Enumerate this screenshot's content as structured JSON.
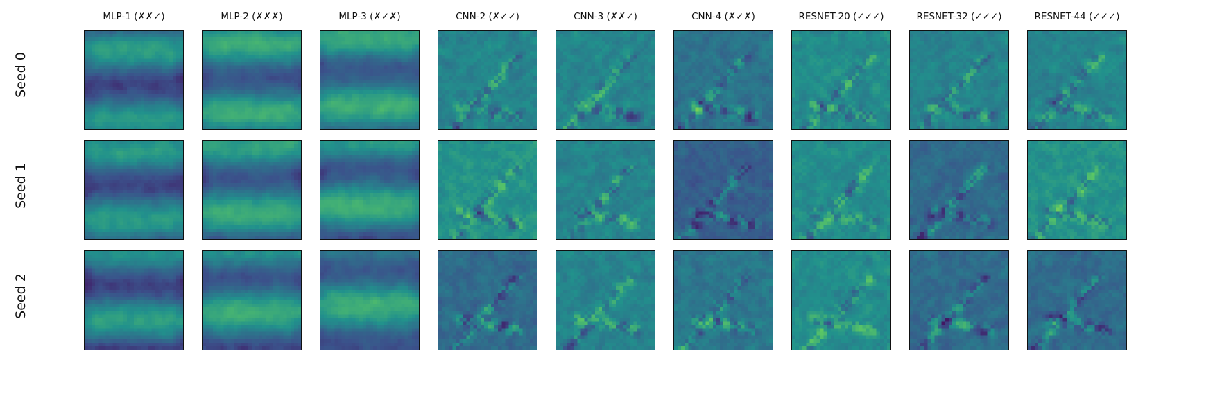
{
  "figure": {
    "columns": [
      {
        "title": "MLP-1 (✗✗✓)"
      },
      {
        "title": "MLP-2 (✗✗✗)"
      },
      {
        "title": "MLP-3 (✗✓✗)"
      },
      {
        "title": "CNN-2 (✗✓✓)"
      },
      {
        "title": "CNN-3 (✗✗✓)"
      },
      {
        "title": "CNN-4 (✗✓✗)"
      },
      {
        "title": "RESNET-20 (✓✓✓)"
      },
      {
        "title": "RESNET-32 (✓✓✓)"
      },
      {
        "title": "RESNET-44 (✓✓✓)"
      }
    ],
    "rows": [
      {
        "label": "Seed 0"
      },
      {
        "label": "Seed 1"
      },
      {
        "label": "Seed 2"
      }
    ],
    "colormap": "viridis"
  }
}
